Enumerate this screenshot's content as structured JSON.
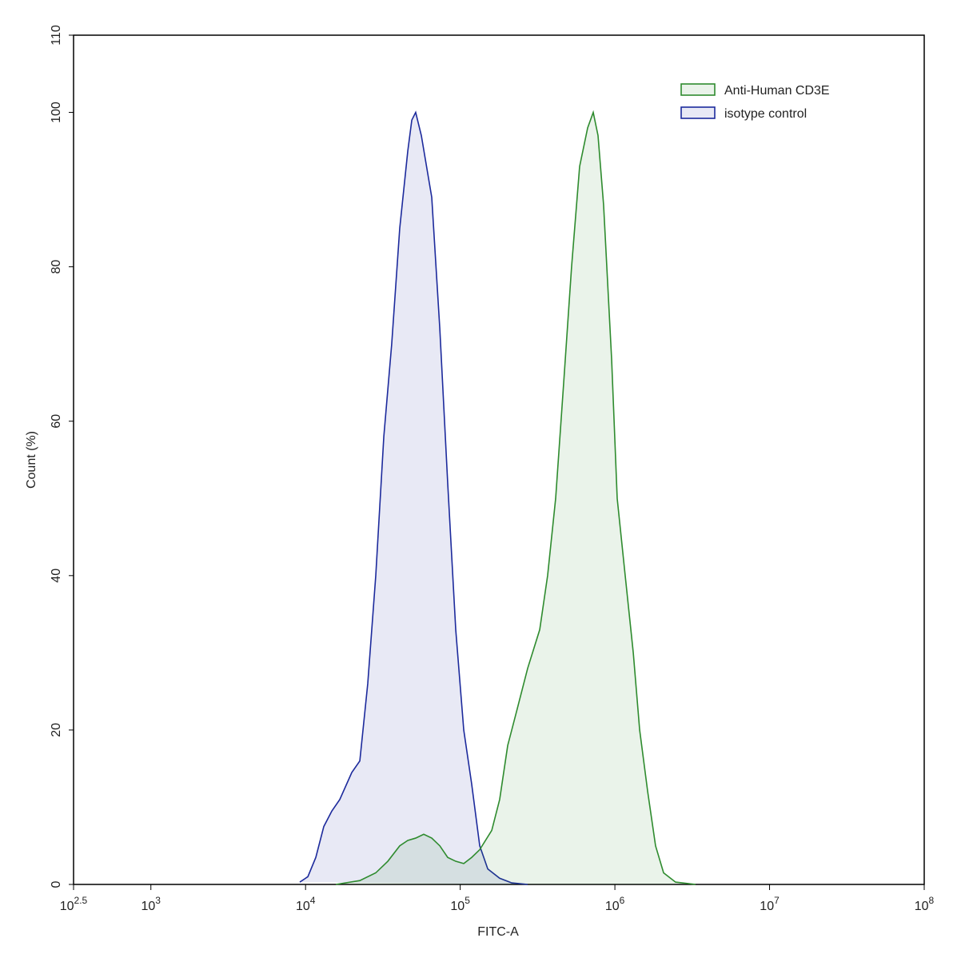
{
  "chart_data": {
    "type": "histogram-overlay",
    "x_label": "FITC-A",
    "y_label": "Count  (%)",
    "xscale": "log",
    "xlim": [
      316.227766,
      100000000
    ],
    "xticks": [
      {
        "value": 316.227766,
        "label": "10",
        "exponent": "2.5"
      },
      {
        "value": 1000,
        "label": "10",
        "exponent": "3"
      },
      {
        "value": 10000,
        "label": "10",
        "exponent": "4"
      },
      {
        "value": 100000,
        "label": "10",
        "exponent": "5"
      },
      {
        "value": 1000000,
        "label": "10",
        "exponent": "6"
      },
      {
        "value": 10000000,
        "label": "10",
        "exponent": "7"
      },
      {
        "value": 100000000,
        "label": "10",
        "exponent": "8"
      }
    ],
    "ylim": [
      0,
      110
    ],
    "yticks": [
      0,
      20,
      40,
      60,
      80,
      100,
      110
    ],
    "legend": "top-right",
    "series": [
      {
        "name": "isotype control",
        "color": "#1c2a9c",
        "x": [
          9180,
          10350,
          11650,
          13120,
          14780,
          16640,
          19900,
          22430,
          25240,
          28440,
          32060,
          36060,
          40640,
          45810,
          48630,
          51520,
          56060,
          65450,
          73790,
          82990,
          93550,
          105400,
          118600,
          133700,
          150700,
          179900,
          215300,
          273000
        ],
        "values": [
          0.3,
          1,
          3.5,
          7.5,
          9.5,
          11,
          14.5,
          16,
          26,
          40,
          58,
          70,
          85,
          95,
          99,
          100,
          97,
          89,
          72,
          52,
          33,
          20,
          13,
          5,
          2,
          0.8,
          0.2,
          0
        ]
      },
      {
        "name": "Anti-Human CD3E",
        "color": "#2e8b2e",
        "x": [
          15700,
          22430,
          28440,
          34030,
          40640,
          45810,
          51520,
          58080,
          65450,
          73790,
          82990,
          93550,
          105400,
          118600,
          133700,
          159900,
          179900,
          202800,
          228600,
          273000,
          326600,
          367300,
          414000,
          466700,
          524800,
          591600,
          666800,
          724400,
          778000,
          845300,
          952700,
          1035000,
          1166000,
          1315000,
          1446000,
          1630000,
          1832000,
          2065000,
          2467000,
          3325000
        ],
        "values": [
          0,
          0.5,
          1.5,
          3,
          5,
          5.7,
          6,
          6.5,
          6,
          5,
          3.5,
          3,
          2.7,
          3.5,
          4.5,
          7,
          11,
          18,
          22,
          28,
          33,
          40,
          50,
          65,
          80,
          93,
          98,
          100,
          97,
          88,
          68,
          50,
          40,
          30,
          20,
          12,
          5,
          1.5,
          0.3,
          0
        ]
      }
    ]
  }
}
